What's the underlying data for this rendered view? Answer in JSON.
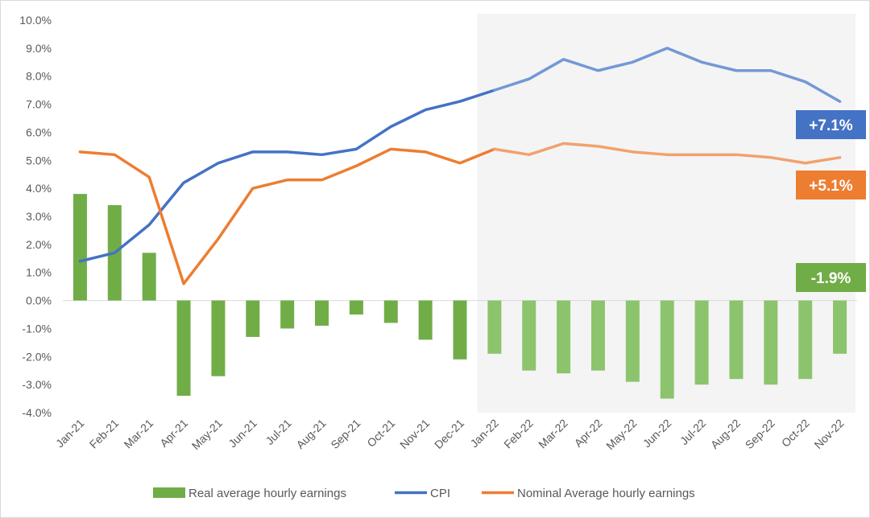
{
  "chart_data": {
    "type": "bar+line",
    "categories": [
      "Jan-21",
      "Feb-21",
      "Mar-21",
      "Apr-21",
      "May-21",
      "Jun-21",
      "Jul-21",
      "Aug-21",
      "Sep-21",
      "Oct-21",
      "Nov-21",
      "Dec-21",
      "Jan-22",
      "Feb-22",
      "Mar-22",
      "Apr-22",
      "May-22",
      "Jun-22",
      "Jul-22",
      "Aug-22",
      "Sep-22",
      "Oct-22",
      "Nov-22"
    ],
    "highlight_from_category": "Jan-22",
    "ylim": [
      -4.0,
      10.0
    ],
    "ytick_step": 1.0,
    "ytick_format": "percent_1dp",
    "grid": false,
    "series": [
      {
        "name": "Real average hourly earnings",
        "kind": "bar",
        "color": "#70AD47",
        "color_faded": "#8CC46D",
        "values": [
          3.8,
          3.4,
          1.7,
          -3.4,
          -2.7,
          -1.3,
          -1.0,
          -0.9,
          -0.5,
          -0.8,
          -1.4,
          -2.1,
          -1.9,
          -2.5,
          -2.6,
          -2.5,
          -2.9,
          -3.5,
          -3.0,
          -2.8,
          -3.0,
          -2.8,
          -1.9
        ]
      },
      {
        "name": "CPI",
        "kind": "line",
        "color": "#4472C4",
        "color_faded": "#7398D6",
        "values": [
          1.4,
          1.7,
          2.7,
          4.2,
          4.9,
          5.3,
          5.3,
          5.2,
          5.4,
          6.2,
          6.8,
          7.1,
          7.5,
          7.9,
          8.6,
          8.2,
          8.5,
          9.0,
          8.5,
          8.2,
          8.2,
          7.8,
          7.1
        ]
      },
      {
        "name": "Nominal Average hourly earnings",
        "kind": "line",
        "color": "#ED7D31",
        "color_faded": "#F0A26D",
        "values": [
          5.3,
          5.2,
          4.4,
          0.6,
          2.2,
          4.0,
          4.3,
          4.3,
          4.8,
          5.4,
          5.3,
          4.9,
          5.4,
          5.2,
          5.6,
          5.5,
          5.3,
          5.2,
          5.2,
          5.2,
          5.1,
          4.9,
          5.1
        ]
      }
    ],
    "annotations": [
      {
        "text": "+7.1%",
        "color": "#4472C4",
        "series": "CPI"
      },
      {
        "text": "+5.1%",
        "color": "#ED7D31",
        "series": "Nominal Average hourly earnings"
      },
      {
        "text": "-1.9%",
        "color": "#70AD47",
        "series": "Real average hourly earnings"
      }
    ],
    "legend_position": "bottom"
  }
}
